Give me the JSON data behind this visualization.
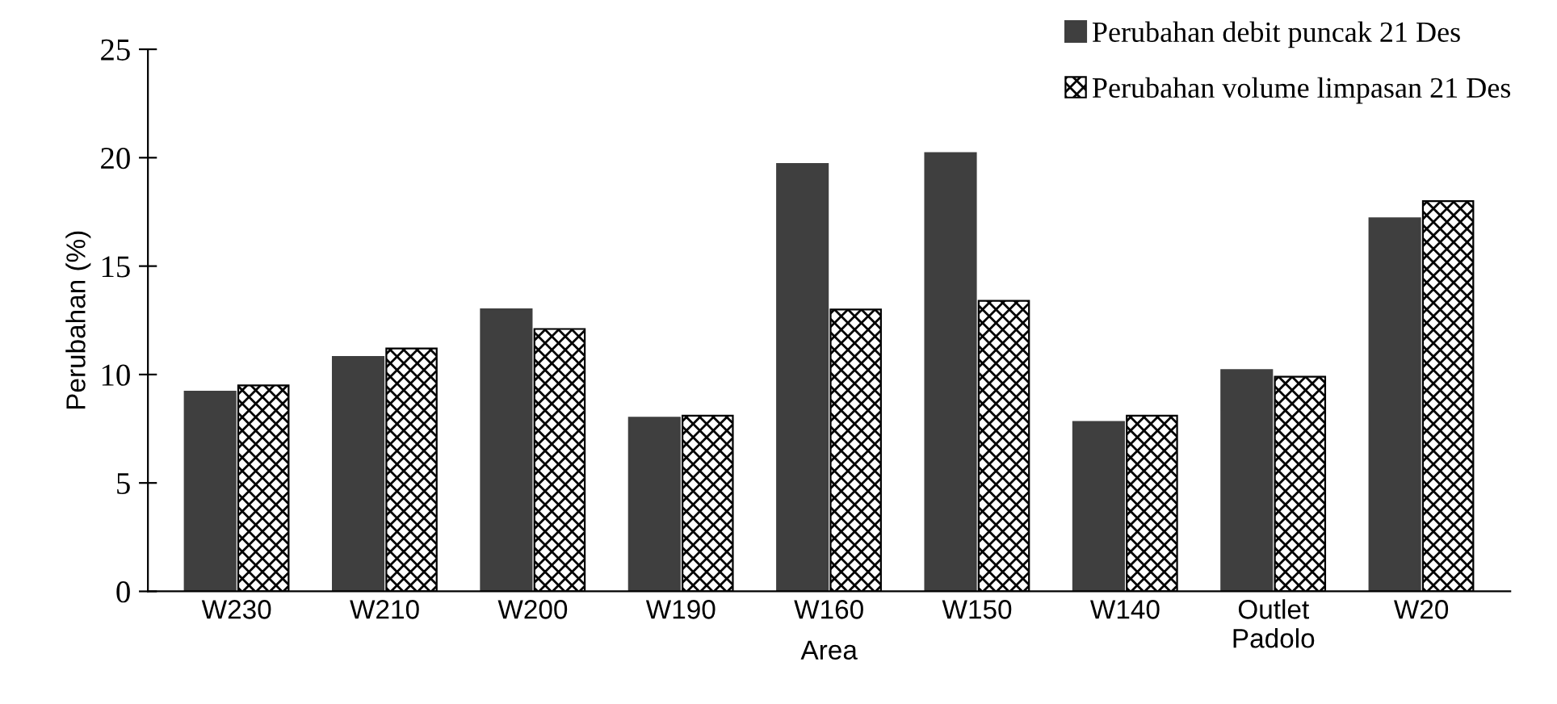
{
  "chart_data": {
    "type": "bar",
    "ylabel": "Perubahan (%)",
    "xlabel": "Area",
    "categories": [
      "W230",
      "W210",
      "W200",
      "W190",
      "W160",
      "W150",
      "W140",
      "Outlet\nPadolo",
      "W20"
    ],
    "series": [
      {
        "name": "Perubahan debit puncak 21 Des",
        "color": "#3f3f3f",
        "values": [
          9.2,
          10.8,
          13.0,
          8.0,
          19.7,
          20.2,
          7.8,
          10.2,
          17.2
        ]
      },
      {
        "name": "Perubahan volume limpasan 21 Des",
        "color": "#000000",
        "values": [
          9.5,
          11.2,
          12.1,
          8.1,
          13.0,
          13.4,
          8.1,
          9.9,
          18.0
        ]
      }
    ],
    "ylim": [
      0,
      25
    ],
    "yticks": [
      0,
      5,
      10,
      15,
      20,
      25
    ],
    "grid": false,
    "legend": "top right"
  }
}
